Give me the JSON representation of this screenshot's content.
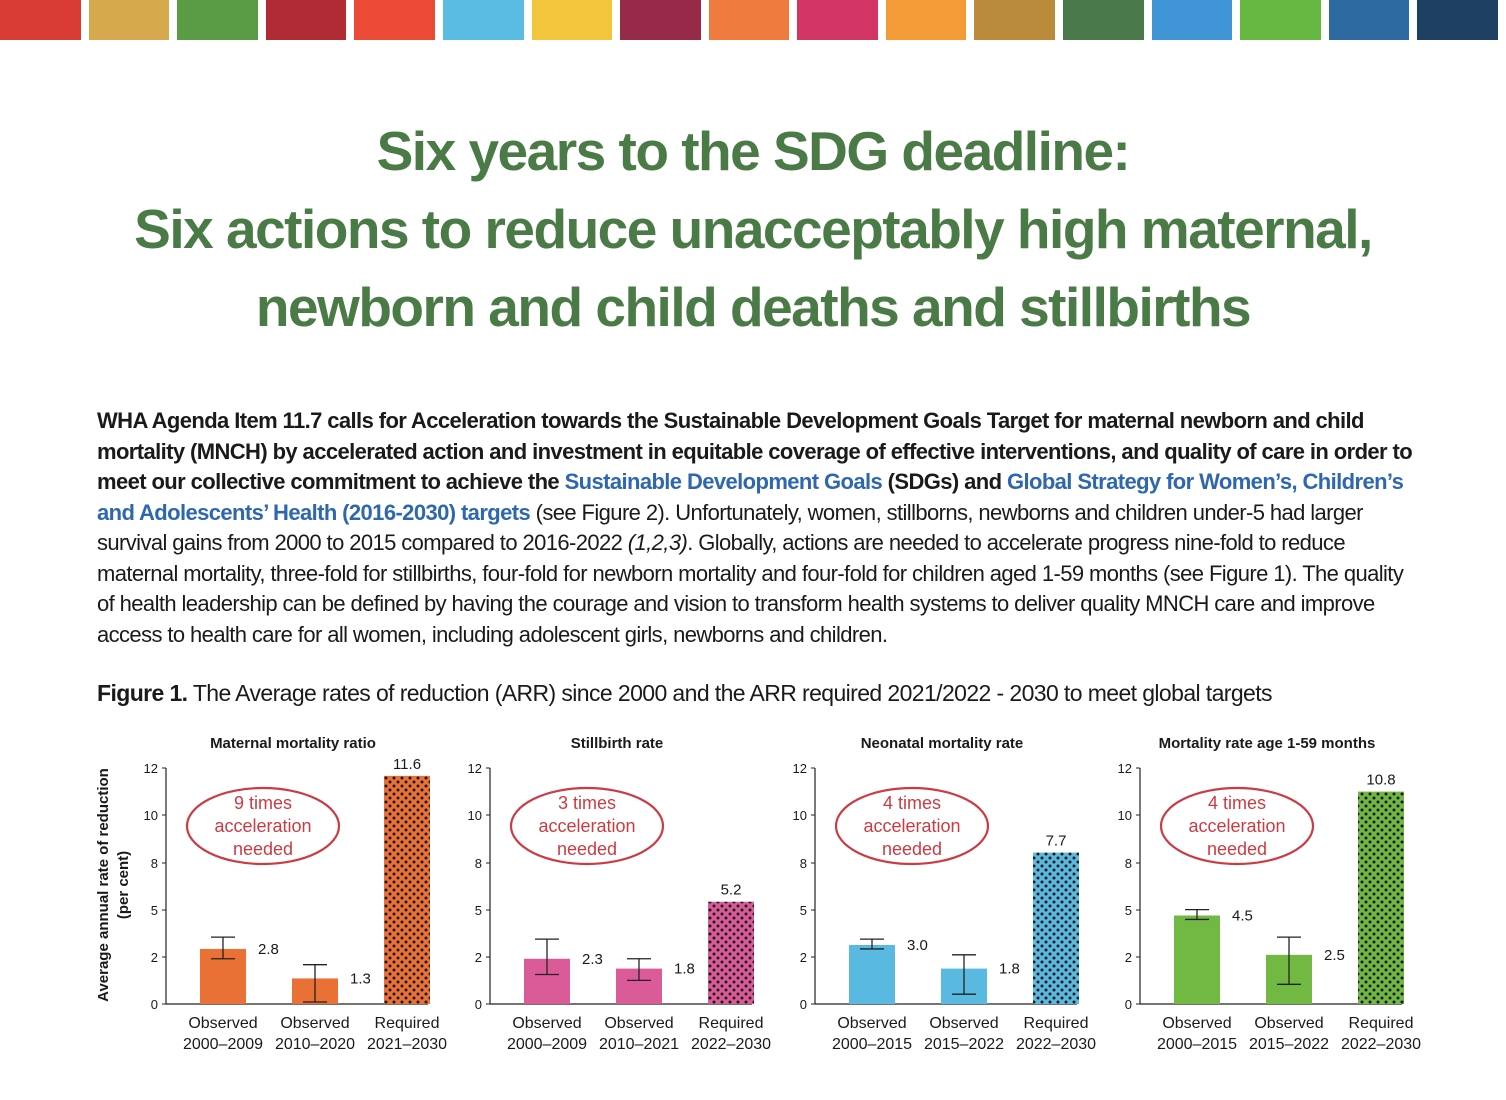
{
  "color_strip": [
    "#d83a34",
    "#d6a94d",
    "#5a9b45",
    "#b02b33",
    "#ea4a36",
    "#5bbce3",
    "#f3c53c",
    "#982a49",
    "#ef7a3e",
    "#d23563",
    "#f39b37",
    "#ba8b3b",
    "#4a7a4b",
    "#3f95d6",
    "#67b843",
    "#2d6aa2",
    "#1e4163"
  ],
  "title": {
    "line1": "Six years to the SDG deadline:",
    "line2": "Six actions to reduce unacceptably high maternal,",
    "line3": "newborn and child deaths and stillbirths"
  },
  "intro": {
    "bold1": "WHA Agenda Item 11.7 calls for Acceleration towards the Sustainable Development Goals Target for maternal newborn and child mortality (MNCH) by accelerated action and investment in equitable coverage of effective interventions, and quality of care in order to meet our collective commitment to achieve the ",
    "link1": "Sustainable Development Goals",
    "bold2": " (SDGs) and ",
    "link2": "Global Strategy for Women’s, Children’s and Adolescents’ Health (2016-2030) targets",
    "text1": " (see Figure 2). Unfortunately, women, stillborns, newborns and children under-5 had larger survival gains from 2000 to 2015 compared to 2016-2022 ",
    "cite": "(1,2,3)",
    "text2": ". Globally, actions are needed to accelerate progress nine-fold to reduce maternal mortality, three-fold for stillbirths, four-fold for newborn mortality and four-fold for children aged 1-59 months (see Figure 1). The quality of health leadership can be defined by having the courage and vision to transform health systems to deliver quality MNCH care and improve access to health care for all women, including adolescent girls, newborns and children."
  },
  "figure": {
    "label": "Figure 1.",
    "caption": " The Average rates of reduction (ARR) since 2000 and the ARR required 2021/2022 - 2030 to meet global targets"
  },
  "chart_data": [
    {
      "type": "bar",
      "title": "Maternal mortality ratio",
      "ylabel": "Average annual rate of reduction (per cent)",
      "yticks": [
        "0",
        "2",
        "5",
        "8",
        "10",
        "12"
      ],
      "ylim": [
        0,
        12
      ],
      "categories": [
        [
          "Observed",
          "2000–2009"
        ],
        [
          "Observed",
          "2010–2020"
        ],
        [
          "Required",
          "2021–2030"
        ]
      ],
      "values": [
        2.8,
        1.3,
        11.6
      ],
      "value_labels": [
        "2.8",
        "1.3",
        "11.6"
      ],
      "error_low": [
        2.3,
        0.1,
        null
      ],
      "error_high": [
        3.4,
        2.0,
        null
      ],
      "patterned": [
        false,
        false,
        true
      ],
      "color": "#ea7135",
      "annotation": [
        "9 times",
        "acceleration",
        "needed"
      ]
    },
    {
      "type": "bar",
      "title": "Stillbirth rate",
      "ylabel": "",
      "yticks": [
        "0",
        "2",
        "5",
        "8",
        "10",
        "12"
      ],
      "ylim": [
        0,
        12
      ],
      "categories": [
        [
          "Observed",
          "2000–2009"
        ],
        [
          "Observed",
          "2010–2021"
        ],
        [
          "Required",
          "2022–2030"
        ]
      ],
      "values": [
        2.3,
        1.8,
        5.2
      ],
      "value_labels": [
        "2.3",
        "1.8",
        "5.2"
      ],
      "error_low": [
        1.5,
        1.2,
        null
      ],
      "error_high": [
        3.3,
        2.3,
        null
      ],
      "patterned": [
        false,
        false,
        true
      ],
      "color": "#db5a98",
      "annotation": [
        "3 times",
        "acceleration",
        "needed"
      ]
    },
    {
      "type": "bar",
      "title": "Neonatal mortality rate",
      "ylabel": "",
      "yticks": [
        "0",
        "2",
        "5",
        "8",
        "10",
        "12"
      ],
      "ylim": [
        0,
        12
      ],
      "categories": [
        [
          "Observed",
          "2000–2015"
        ],
        [
          "Observed",
          "2015–2022"
        ],
        [
          "Required",
          "2022–2030"
        ]
      ],
      "values": [
        3.0,
        1.8,
        7.7
      ],
      "value_labels": [
        "3.0",
        "1.8",
        "7.7"
      ],
      "error_low": [
        2.8,
        0.5,
        null
      ],
      "error_high": [
        3.3,
        2.5,
        null
      ],
      "patterned": [
        false,
        false,
        true
      ],
      "color": "#5ab9e0",
      "annotation": [
        "4 times",
        "acceleration",
        "needed"
      ]
    },
    {
      "type": "bar",
      "title": "Mortality rate age 1-59 months",
      "ylabel": "",
      "yticks": [
        "0",
        "2",
        "5",
        "8",
        "10",
        "12"
      ],
      "ylim": [
        0,
        12
      ],
      "categories": [
        [
          "Observed",
          "2000–2015"
        ],
        [
          "Observed",
          "2015–2022"
        ],
        [
          "Required",
          "2022–2030"
        ]
      ],
      "values": [
        4.5,
        2.5,
        10.8
      ],
      "value_labels": [
        "4.5",
        "2.5",
        "10.8"
      ],
      "error_low": [
        4.3,
        1.0,
        null
      ],
      "error_high": [
        4.8,
        3.4,
        null
      ],
      "patterned": [
        false,
        false,
        true
      ],
      "color": "#72b944",
      "annotation": [
        "4 times",
        "acceleration",
        "needed"
      ]
    }
  ],
  "annotation_color": "#cc3a42"
}
